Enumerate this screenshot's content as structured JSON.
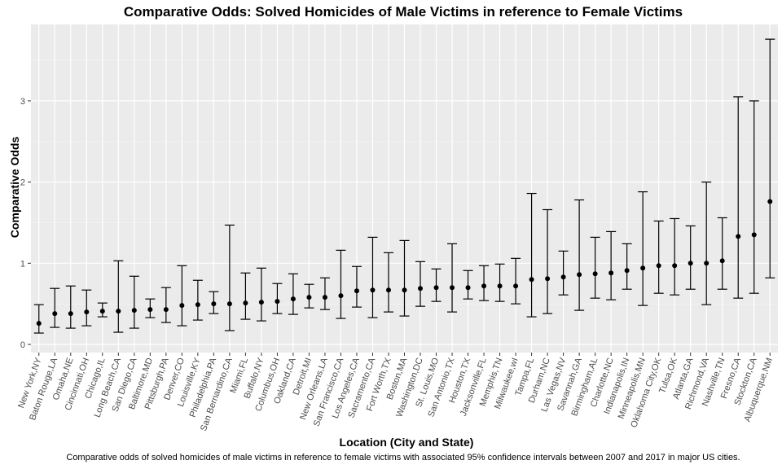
{
  "chart_data": {
    "type": "scatter",
    "title": "Comparative Odds: Solved Homicides of Male Victims in reference to Female Victims",
    "xlabel": "Location (City and State)",
    "ylabel": "Comparative Odds",
    "caption": "Comparative odds of solved homicides of male victims in reference to female victims with associated 95% confidence intervals between 2007 and 2017 in major US cities.",
    "ylim": [
      0,
      3.8
    ],
    "yticks": [
      0,
      1,
      2,
      3
    ],
    "grid": true,
    "background": "#ebebeb",
    "categories": [
      "New York,NY",
      "Baton Rouge,LA",
      "Omaha,NE",
      "Cincinnati,OH",
      "Chicago,IL",
      "Long Beach,CA",
      "San Diego,CA",
      "Baltimore,MD",
      "Pittsburgh,PA",
      "Denver,CO",
      "Louisville,KY",
      "Philadelphia,PA",
      "San Bernardino,CA",
      "Miami,FL",
      "Buffalo,NY",
      "Columbus,OH",
      "Oakland,CA",
      "Detroit,MI",
      "New Orleans,LA",
      "San Francisco,CA",
      "Los Angeles,CA",
      "Sacramento,CA",
      "Fort Worth,TX",
      "Boston,MA",
      "Washington,DC",
      "St. Louis,MO",
      "San Antonio,TX",
      "Houston,TX",
      "Jacksonville,FL",
      "Memphis,TN",
      "Milwaukee,wI",
      "Tampa,FL",
      "Durham,NC",
      "Las Vegas,NV",
      "Savannah,GA",
      "Birmingham,AL",
      "Charlotte,NC",
      "Indianapolis,IN",
      "Minneapolis,MN",
      "Oklahoma City,OK",
      "Tulsa,OK",
      "Atlanta,GA",
      "Richmond,VA",
      "Nashville,TN",
      "Fresno,CA",
      "Stockton,CA",
      "Albuquerque,NM"
    ],
    "series": [
      {
        "estimate": [
          0.26,
          0.38,
          0.38,
          0.4,
          0.41,
          0.41,
          0.42,
          0.43,
          0.43,
          0.48,
          0.49,
          0.5,
          0.5,
          0.51,
          0.52,
          0.53,
          0.56,
          0.58,
          0.58,
          0.6,
          0.66,
          0.67,
          0.67,
          0.67,
          0.69,
          0.7,
          0.7,
          0.7,
          0.72,
          0.72,
          0.72,
          0.8,
          0.81,
          0.83,
          0.86,
          0.87,
          0.88,
          0.91,
          0.94,
          0.97,
          0.97,
          1.0,
          1.0,
          1.03,
          1.33,
          1.35,
          1.76
        ],
        "lower": [
          0.14,
          0.21,
          0.2,
          0.23,
          0.34,
          0.15,
          0.2,
          0.33,
          0.27,
          0.23,
          0.3,
          0.38,
          0.17,
          0.31,
          0.29,
          0.38,
          0.37,
          0.45,
          0.43,
          0.32,
          0.46,
          0.33,
          0.4,
          0.35,
          0.47,
          0.53,
          0.4,
          0.56,
          0.54,
          0.53,
          0.5,
          0.34,
          0.38,
          0.61,
          0.42,
          0.57,
          0.55,
          0.68,
          0.48,
          0.63,
          0.61,
          0.68,
          0.49,
          0.68,
          0.57,
          0.63,
          0.82
        ],
        "upper": [
          0.49,
          0.69,
          0.72,
          0.67,
          0.51,
          1.03,
          0.84,
          0.56,
          0.7,
          0.97,
          0.79,
          0.65,
          1.47,
          0.88,
          0.94,
          0.75,
          0.87,
          0.74,
          0.82,
          1.16,
          0.96,
          1.32,
          1.13,
          1.28,
          1.02,
          0.93,
          1.24,
          0.91,
          0.97,
          0.99,
          1.06,
          1.86,
          1.66,
          1.15,
          1.78,
          1.32,
          1.39,
          1.24,
          1.88,
          1.52,
          1.55,
          1.46,
          2.0,
          1.56,
          3.05,
          3.0,
          3.76
        ]
      }
    ]
  }
}
